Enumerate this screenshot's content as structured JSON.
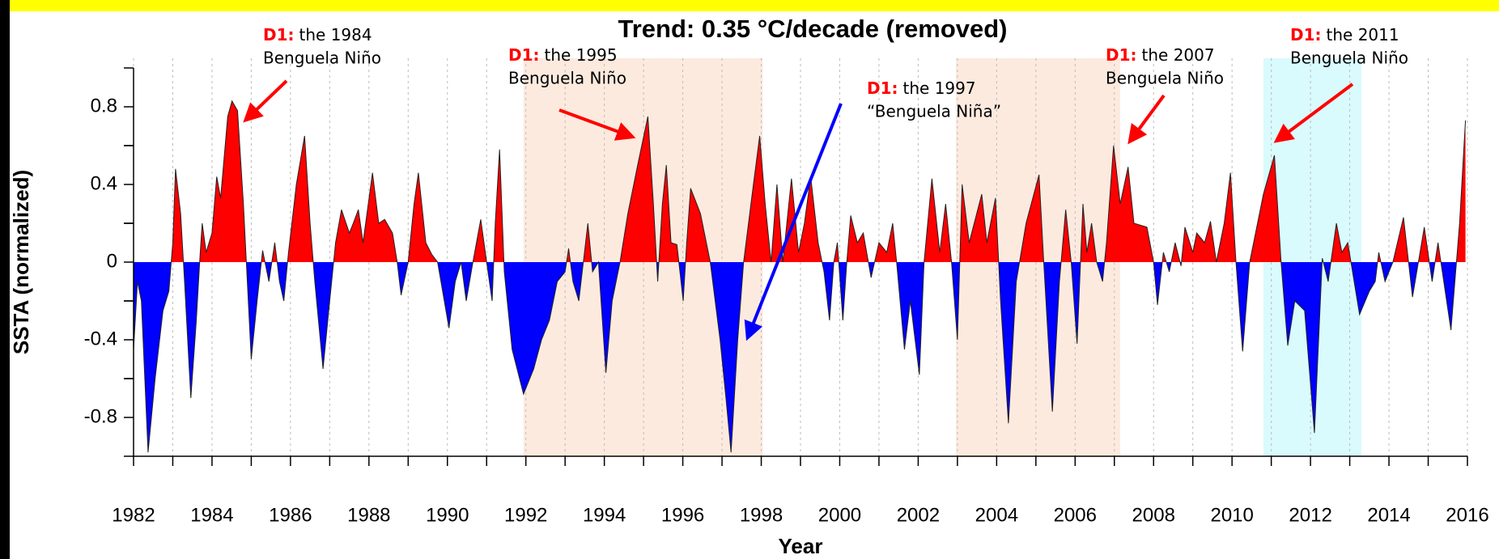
{
  "chart_data": {
    "type": "area",
    "title": "Trend: 0.35 °C/decade (removed)",
    "x_label": "Year",
    "y_label": "SSTA (normalized)",
    "xlim": [
      1982,
      2016
    ],
    "xticks": [
      1982,
      1984,
      1986,
      1988,
      1990,
      1992,
      1994,
      1996,
      1998,
      2000,
      2002,
      2004,
      2006,
      2008,
      2010,
      2012,
      2014,
      2016
    ],
    "ylim": [
      -1,
      1
    ],
    "yticks": [
      -0.8,
      -0.4,
      0,
      0.4,
      0.8
    ],
    "grid": true,
    "positive_color": "#ff0000",
    "negative_color": "#0000ff",
    "shaded_periods": [
      {
        "from": 1991.94,
        "to": 1998.04,
        "color": "#fdeadf"
      },
      {
        "from": 2002.96,
        "to": 2007.15,
        "color": "#fdeadf"
      },
      {
        "from": 2010.8,
        "to": 2013.3,
        "color": "#d9fbfd"
      }
    ],
    "x": [
      1982.0,
      1982.1,
      1982.2,
      1982.37,
      1982.55,
      1982.75,
      1982.9,
      1983.0,
      1983.07,
      1983.2,
      1983.3,
      1983.46,
      1983.6,
      1983.7,
      1983.75,
      1983.85,
      1984.0,
      1984.12,
      1984.22,
      1984.4,
      1984.51,
      1984.65,
      1984.8,
      1984.9,
      1985.0,
      1985.15,
      1985.29,
      1985.45,
      1985.6,
      1985.72,
      1985.83,
      1985.95,
      1986.15,
      1986.36,
      1986.5,
      1986.62,
      1986.83,
      1987.0,
      1987.15,
      1987.3,
      1987.5,
      1987.6,
      1987.73,
      1987.85,
      1988.09,
      1988.25,
      1988.4,
      1988.6,
      1988.72,
      1988.82,
      1989.0,
      1989.15,
      1989.26,
      1989.45,
      1989.6,
      1989.75,
      1990.04,
      1990.2,
      1990.35,
      1990.48,
      1990.65,
      1990.85,
      1991.0,
      1991.14,
      1991.22,
      1991.33,
      1991.45,
      1991.65,
      1991.94,
      1992.2,
      1992.4,
      1992.6,
      1992.8,
      1993.0,
      1993.09,
      1993.2,
      1993.35,
      1993.58,
      1993.7,
      1993.85,
      1994.04,
      1994.2,
      1994.4,
      1994.6,
      1994.85,
      1995.11,
      1995.25,
      1995.36,
      1995.48,
      1995.58,
      1995.7,
      1995.85,
      1996.01,
      1996.1,
      1996.2,
      1996.45,
      1996.7,
      1996.95,
      1997.1,
      1997.23,
      1997.4,
      1997.55,
      1997.8,
      1997.96,
      1998.1,
      1998.25,
      1998.4,
      1998.55,
      1998.77,
      1998.95,
      1999.1,
      1999.26,
      1999.45,
      1999.6,
      1999.74,
      1999.85,
      1999.94,
      2000.08,
      2000.18,
      2000.28,
      2000.45,
      2000.6,
      2000.8,
      2001.0,
      2001.2,
      2001.35,
      2001.45,
      2001.65,
      2001.8,
      2002.03,
      2002.15,
      2002.35,
      2002.55,
      2002.7,
      2002.85,
      2003.0,
      2003.12,
      2003.3,
      2003.62,
      2003.75,
      2003.97,
      2004.1,
      2004.3,
      2004.5,
      2004.75,
      2005.08,
      2005.2,
      2005.42,
      2005.6,
      2005.76,
      2005.9,
      2006.05,
      2006.2,
      2006.3,
      2006.42,
      2006.55,
      2006.7,
      2006.8,
      2006.98,
      2007.15,
      2007.35,
      2007.5,
      2007.83,
      2008.0,
      2008.1,
      2008.25,
      2008.4,
      2008.55,
      2008.7,
      2008.8,
      2009.0,
      2009.1,
      2009.3,
      2009.45,
      2009.6,
      2009.8,
      2009.96,
      2010.1,
      2010.27,
      2010.45,
      2010.8,
      2011.08,
      2011.25,
      2011.42,
      2011.6,
      2011.85,
      2012.1,
      2012.3,
      2012.45,
      2012.66,
      2012.8,
      2012.95,
      2013.25,
      2013.5,
      2013.65,
      2013.74,
      2013.9,
      2014.1,
      2014.37,
      2014.6,
      2014.9,
      2015.1,
      2015.25,
      2015.58,
      2015.8,
      2015.95
    ],
    "values": [
      -0.45,
      -0.1,
      -0.2,
      -0.98,
      -0.6,
      -0.25,
      -0.15,
      0.1,
      0.48,
      0.25,
      -0.1,
      -0.7,
      -0.3,
      0.05,
      0.2,
      0.05,
      0.15,
      0.44,
      0.33,
      0.75,
      0.83,
      0.78,
      0.3,
      -0.1,
      -0.5,
      -0.2,
      0.06,
      -0.1,
      0.1,
      -0.1,
      -0.2,
      0.05,
      0.4,
      0.65,
      0.2,
      -0.1,
      -0.55,
      -0.2,
      0.1,
      0.27,
      0.15,
      0.2,
      0.27,
      0.1,
      0.46,
      0.2,
      0.22,
      0.15,
      0,
      -0.17,
      0,
      0.3,
      0.46,
      0.1,
      0.04,
      0,
      -0.34,
      -0.1,
      0,
      -0.2,
      0,
      0.22,
      0,
      -0.2,
      0.2,
      0.58,
      -0.05,
      -0.45,
      -0.68,
      -0.55,
      -0.4,
      -0.3,
      -0.1,
      -0.05,
      0.07,
      -0.1,
      -0.2,
      0.2,
      -0.05,
      0,
      -0.57,
      -0.2,
      0,
      0.25,
      0.5,
      0.75,
      0.3,
      -0.1,
      0.3,
      0.5,
      0.1,
      0.09,
      -0.2,
      0.1,
      0.38,
      0.25,
      0,
      -0.4,
      -0.7,
      -0.98,
      -0.4,
      0,
      0.4,
      0.65,
      0.3,
      0,
      0.4,
      0,
      0.43,
      0.05,
      0.2,
      0.44,
      0.1,
      -0.05,
      -0.3,
      0,
      0.1,
      -0.3,
      0,
      0.24,
      0.1,
      0.15,
      -0.08,
      0.1,
      0.05,
      0.2,
      0,
      -0.45,
      -0.2,
      -0.58,
      0,
      0.43,
      0.05,
      0.3,
      0,
      -0.4,
      0.4,
      0.1,
      0.35,
      0.1,
      0.33,
      -0.2,
      -0.83,
      -0.1,
      0.2,
      0.45,
      0,
      -0.77,
      -0.1,
      0.27,
      0,
      -0.42,
      0.3,
      0.05,
      0.2,
      0,
      -0.1,
      0.1,
      0.6,
      0.3,
      0.49,
      0.2,
      0.18,
      0,
      -0.22,
      0.05,
      -0.05,
      0.1,
      -0.02,
      0.18,
      0.05,
      0.15,
      0.1,
      0.21,
      0,
      0.2,
      0.46,
      0,
      -0.46,
      0,
      0.35,
      0.55,
      0,
      -0.43,
      -0.2,
      -0.25,
      -0.88,
      0.02,
      -0.1,
      0.2,
      0.05,
      0.1,
      -0.27,
      -0.15,
      -0.1,
      0.05,
      -0.1,
      0,
      0.23,
      -0.18,
      0.18,
      -0.1,
      0.1,
      -0.35,
      0.2,
      0.73
    ],
    "annotations": [
      {
        "label": "D1:",
        "text": [
          "the 1984",
          "Benguela Niño"
        ]
      },
      {
        "label": "D1:",
        "text": [
          "the 1995",
          "Benguela Niño"
        ]
      },
      {
        "label": "D1:",
        "text": [
          "the 1997",
          "“Benguela Niña”"
        ]
      },
      {
        "label": "D1:",
        "text": [
          "the 2007",
          "Benguela Niño"
        ]
      },
      {
        "label": "D1:",
        "text": [
          "the 2011",
          "Benguela Niño"
        ]
      }
    ]
  }
}
